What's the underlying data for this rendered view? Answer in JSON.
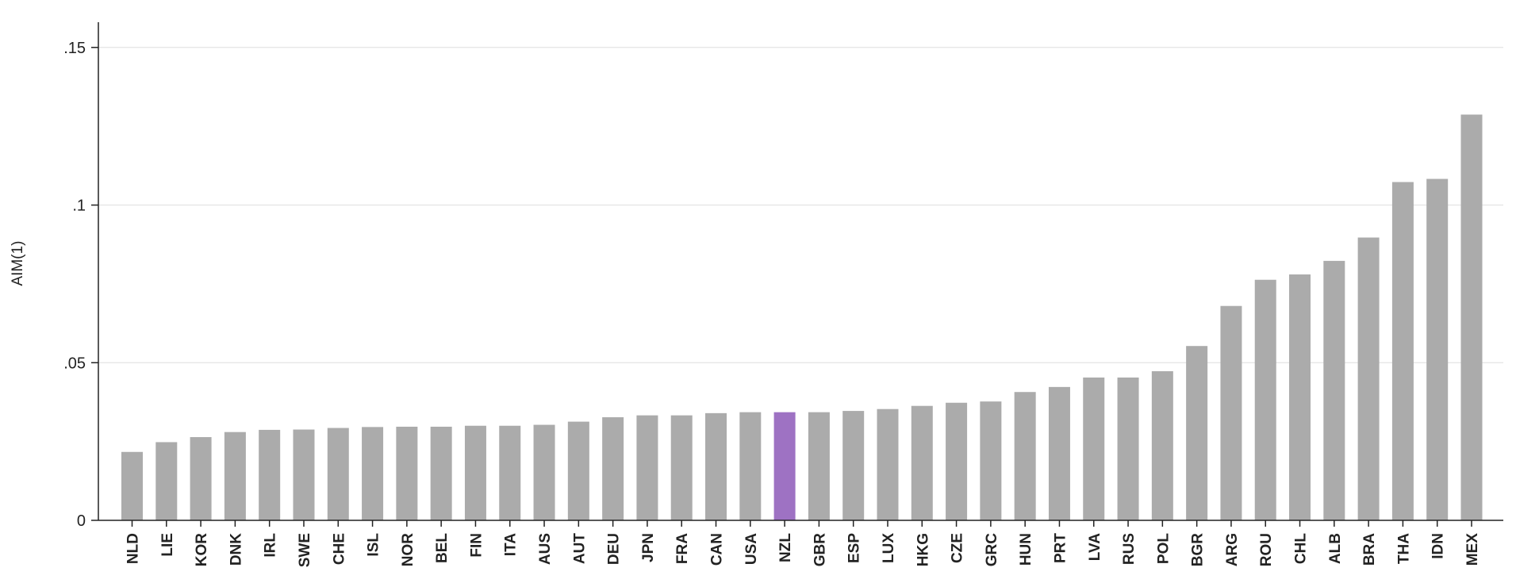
{
  "chart_data": {
    "type": "bar",
    "title": "",
    "xlabel": "",
    "ylabel": "AIM(1)",
    "ylim": [
      0,
      0.158
    ],
    "yticks": [
      0,
      0.05,
      0.1,
      0.15
    ],
    "ytick_labels": [
      "0",
      ".05",
      ".1",
      ".15"
    ],
    "grid": true,
    "bar_color": "#ababab",
    "highlight_color": "#9e72c3",
    "highlight_category": "NZL",
    "categories": [
      "NLD",
      "LIE",
      "KOR",
      "DNK",
      "IRL",
      "SWE",
      "CHE",
      "ISL",
      "NOR",
      "BEL",
      "FIN",
      "ITA",
      "AUS",
      "AUT",
      "DEU",
      "JPN",
      "FRA",
      "CAN",
      "USA",
      "NZL",
      "GBR",
      "ESP",
      "LUX",
      "HKG",
      "CZE",
      "GRC",
      "HUN",
      "PRT",
      "LVA",
      "RUS",
      "POL",
      "BGR",
      "ARG",
      "ROU",
      "CHL",
      "ALB",
      "BRA",
      "THA",
      "IDN",
      "MEX"
    ],
    "values": [
      0.0217,
      0.0248,
      0.0264,
      0.028,
      0.0287,
      0.0288,
      0.0293,
      0.0296,
      0.0297,
      0.0297,
      0.03,
      0.03,
      0.0303,
      0.0313,
      0.0327,
      0.0333,
      0.0333,
      0.034,
      0.0343,
      0.0343,
      0.0343,
      0.0347,
      0.0353,
      0.0363,
      0.0373,
      0.0377,
      0.0407,
      0.0423,
      0.0453,
      0.0453,
      0.0473,
      0.0553,
      0.068,
      0.0763,
      0.078,
      0.0823,
      0.0897,
      0.1073,
      0.1083,
      0.1287
    ]
  }
}
